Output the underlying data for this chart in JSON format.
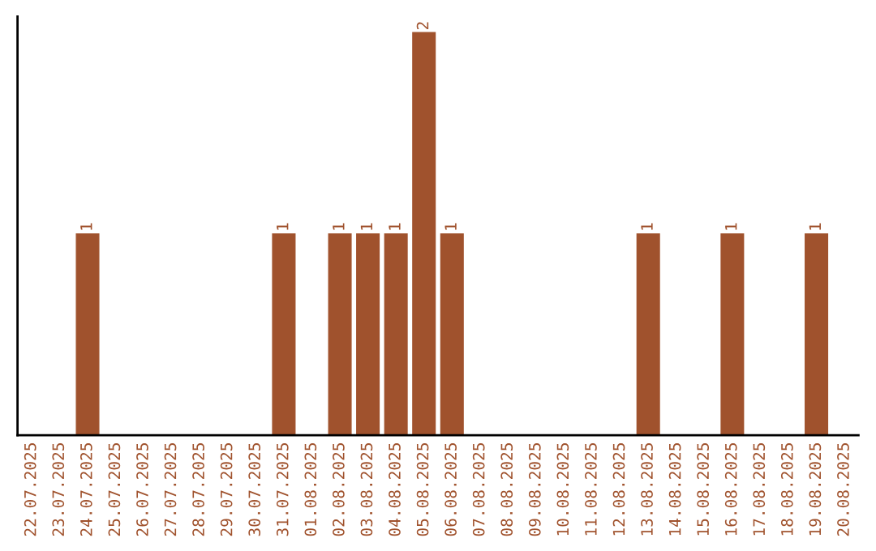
{
  "chart_data": {
    "type": "bar",
    "categories": [
      "22.07.2025",
      "23.07.2025",
      "24.07.2025",
      "25.07.2025",
      "26.07.2025",
      "27.07.2025",
      "28.07.2025",
      "29.07.2025",
      "30.07.2025",
      "31.07.2025",
      "01.08.2025",
      "02.08.2025",
      "03.08.2025",
      "04.08.2025",
      "05.08.2025",
      "06.08.2025",
      "07.08.2025",
      "08.08.2025",
      "09.08.2025",
      "10.08.2025",
      "11.08.2025",
      "12.08.2025",
      "13.08.2025",
      "14.08.2025",
      "15.08.2025",
      "16.08.2025",
      "17.08.2025",
      "18.08.2025",
      "19.08.2025",
      "20.08.2025"
    ],
    "values": [
      0,
      0,
      1,
      0,
      0,
      0,
      0,
      0,
      0,
      1,
      0,
      1,
      1,
      1,
      2,
      1,
      0,
      0,
      0,
      0,
      0,
      0,
      1,
      0,
      0,
      1,
      0,
      0,
      1,
      0
    ],
    "value_labels": [
      null,
      null,
      "1",
      null,
      null,
      null,
      null,
      null,
      null,
      "1",
      null,
      "1",
      "1",
      "1",
      "2",
      "1",
      null,
      null,
      null,
      null,
      null,
      null,
      "1",
      null,
      null,
      "1",
      null,
      null,
      "1",
      null
    ],
    "color": "#a0522d",
    "grid": false,
    "tick_labels": "x"
  }
}
